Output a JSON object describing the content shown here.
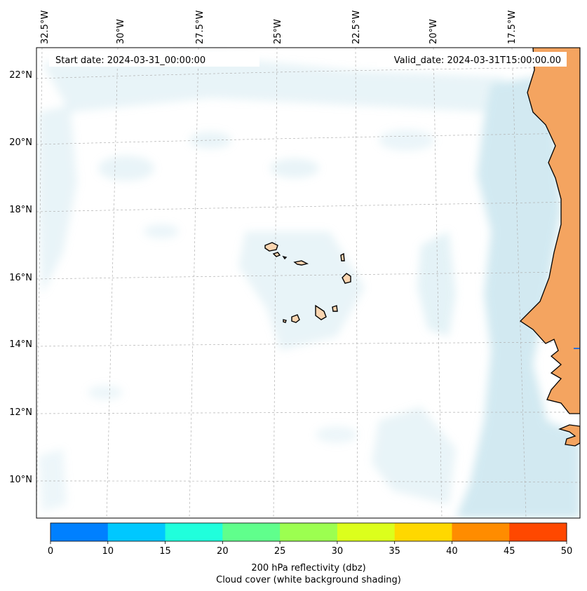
{
  "map": {
    "start_date": "Start date: 2024-03-31_00:00:00",
    "valid_date": "Valid_date: 2024-03-31T15:00:00.00",
    "longitude_labels": [
      "32.5°W",
      "30°W",
      "27.5°W",
      "25°W",
      "22.5°W",
      "20°W",
      "17.5°W"
    ],
    "latitude_labels": [
      "22°N",
      "20°N",
      "18°N",
      "16°N",
      "14°N",
      "12°N",
      "10°N"
    ],
    "colors": {
      "land": "#f4a460",
      "island": "#fbd5b0",
      "cloud": "#add8e6",
      "coastline": "#000000",
      "gridline": "#b0b0b0"
    }
  },
  "colorbar": {
    "ticks": [
      "0",
      "10",
      "15",
      "20",
      "25",
      "30",
      "35",
      "40",
      "45",
      "50"
    ],
    "colors": [
      "#0080ff",
      "#00c8ff",
      "#20ffdc",
      "#60ff8c",
      "#9cff50",
      "#dcff1c",
      "#ffd800",
      "#ff8c00",
      "#ff4800"
    ],
    "label_line1": "200 hPa reflectivity (dbz)",
    "label_line2": "Cloud cover (white background shading)"
  }
}
